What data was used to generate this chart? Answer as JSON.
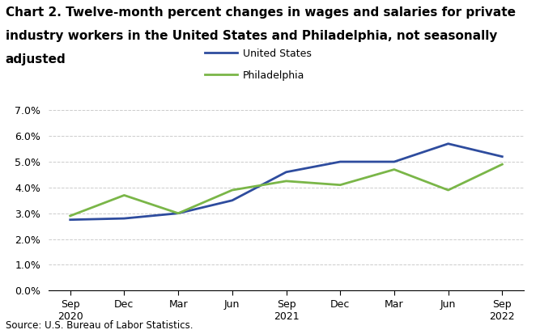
{
  "title_line1": "Chart 2. Twelve-month percent changes in wages and salaries for private",
  "title_line2": "industry workers in the United States and Philadelphia, not seasonally",
  "title_line3": "adjusted",
  "source": "Source: U.S. Bureau of Labor Statistics.",
  "x_labels": [
    "Sep\n2020",
    "Dec",
    "Mar",
    "Jun",
    "Sep\n2021",
    "Dec",
    "Mar",
    "Jun",
    "Sep\n2022"
  ],
  "us_values": [
    2.75,
    2.8,
    3.0,
    3.5,
    4.6,
    5.0,
    5.0,
    5.7,
    5.2
  ],
  "philly_values": [
    2.9,
    3.7,
    3.0,
    3.9,
    4.25,
    4.1,
    4.7,
    3.9,
    4.9
  ],
  "us_color": "#2E4C9E",
  "philly_color": "#7AB648",
  "us_label": "United States",
  "philly_label": "Philadelphia",
  "ylim": [
    0.0,
    7.0
  ],
  "yticks": [
    0.0,
    1.0,
    2.0,
    3.0,
    4.0,
    5.0,
    6.0,
    7.0
  ],
  "background_color": "#ffffff",
  "grid_color": "#cccccc",
  "line_width": 2.0,
  "title_fontsize": 11,
  "legend_fontsize": 9,
  "tick_fontsize": 9,
  "source_fontsize": 8.5
}
